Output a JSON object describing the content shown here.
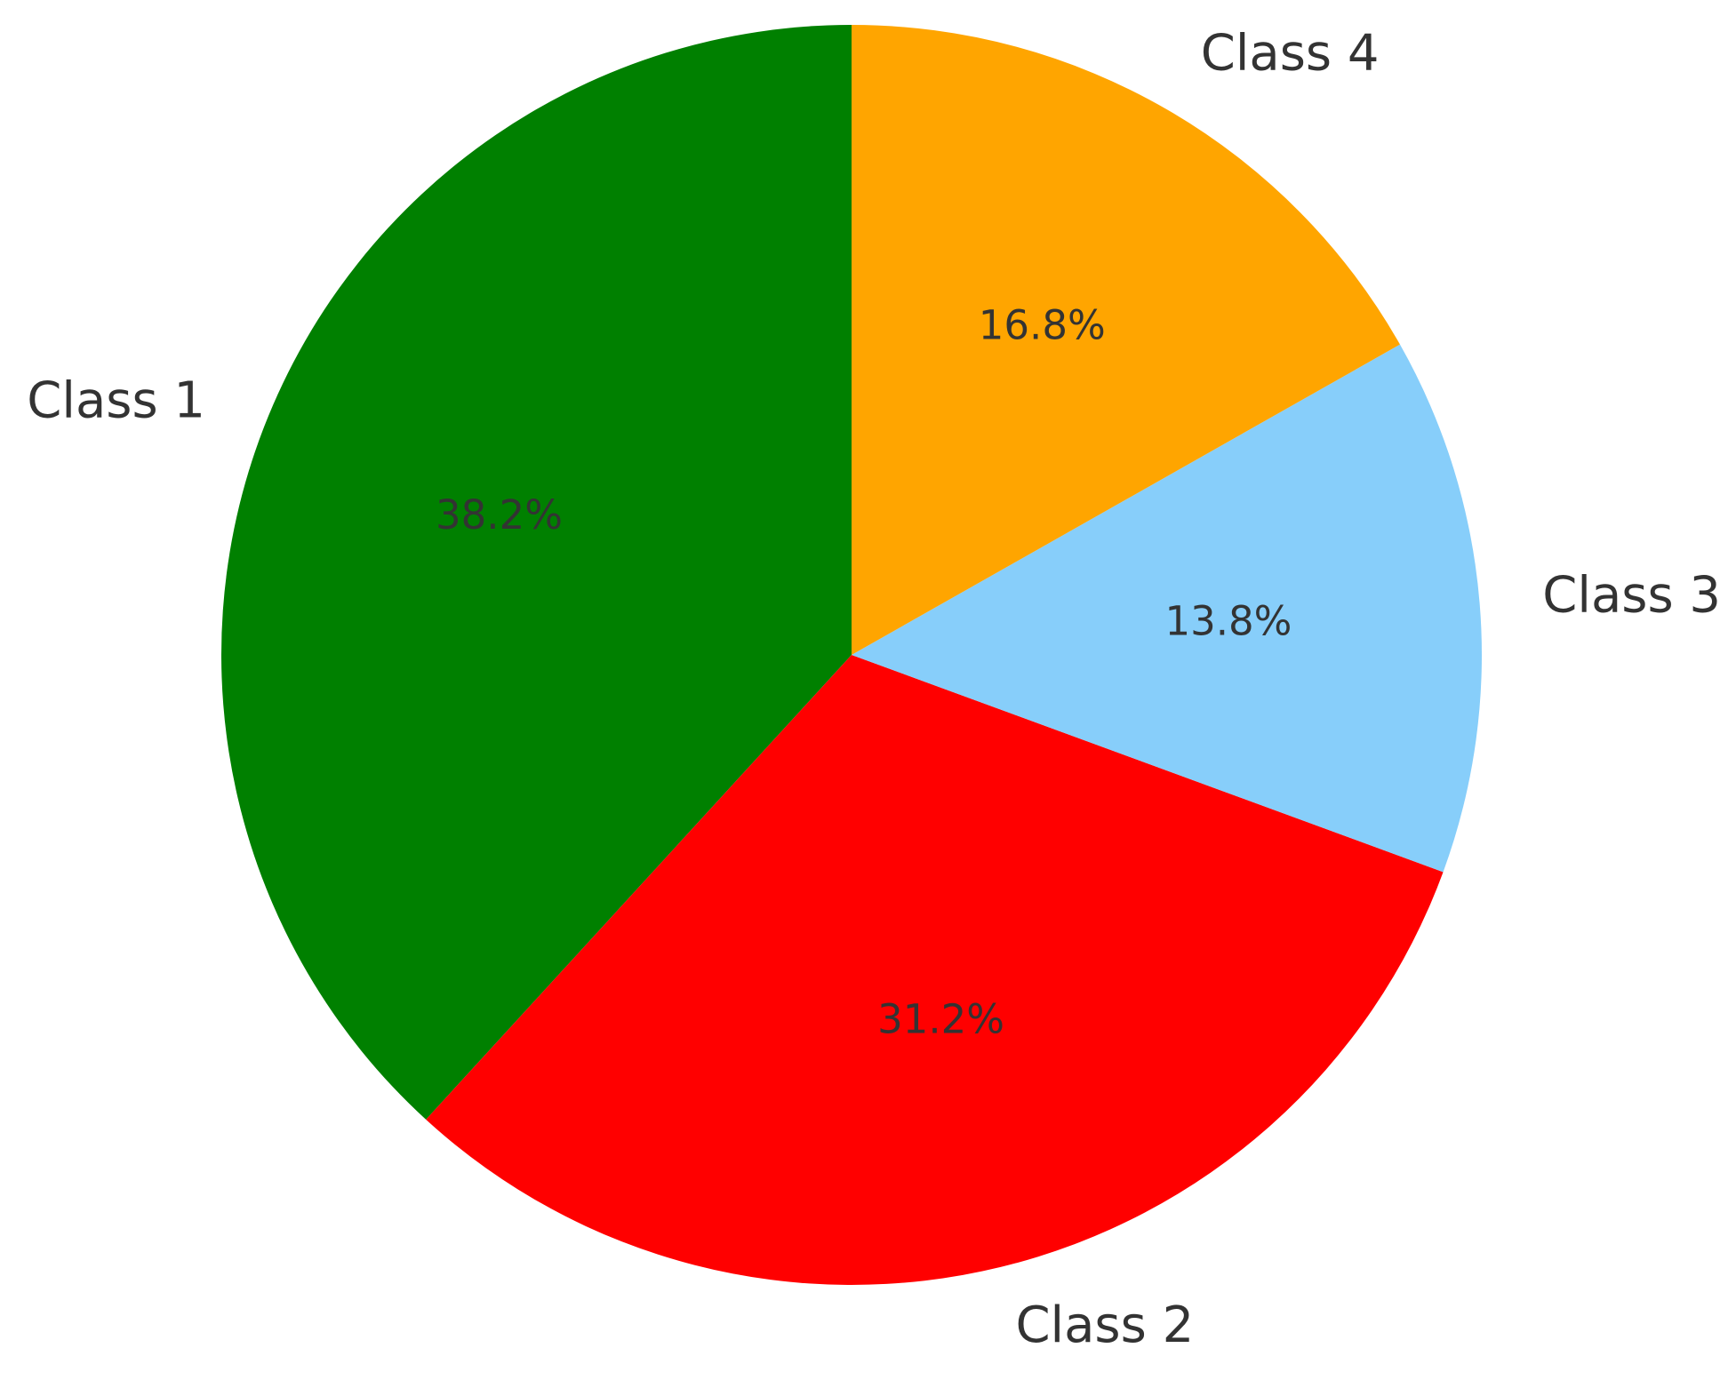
{
  "chart_data": {
    "type": "pie",
    "categories": [
      "Class 1",
      "Class 2",
      "Class 3",
      "Class 4"
    ],
    "values": [
      38.2,
      31.2,
      13.8,
      16.8
    ],
    "value_labels": [
      "38.2%",
      "31.2%",
      "13.8%",
      "16.8%"
    ],
    "colors": [
      "#008000",
      "#ff0000",
      "#87cefa",
      "#ffa500"
    ],
    "start_angle": 90,
    "direction": "counterclockwise"
  }
}
